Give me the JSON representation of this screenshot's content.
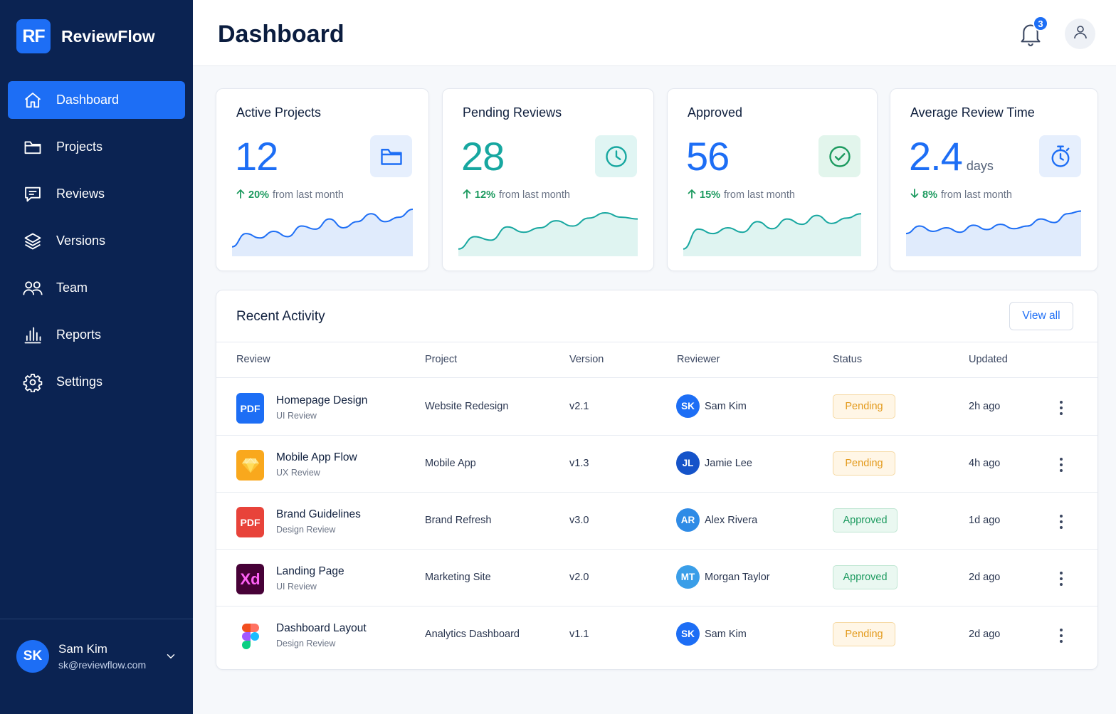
{
  "brand": {
    "logo": "RF",
    "name": "ReviewFlow"
  },
  "nav": [
    {
      "label": "Dashboard",
      "icon": "home-icon",
      "active": true
    },
    {
      "label": "Projects",
      "icon": "folder-icon"
    },
    {
      "label": "Reviews",
      "icon": "message-icon"
    },
    {
      "label": "Versions",
      "icon": "layers-icon"
    },
    {
      "label": "Team",
      "icon": "users-icon"
    },
    {
      "label": "Reports",
      "icon": "bar-chart-icon"
    },
    {
      "label": "Settings",
      "icon": "gear-icon"
    }
  ],
  "user": {
    "initials": "SK",
    "name": "Sam Kim",
    "email": "sk@reviewflow.com"
  },
  "header": {
    "title": "Dashboard",
    "notification_count": "3"
  },
  "colors": {
    "sidebar": "#0b2352",
    "accent": "#1d6ef5",
    "teal": "#17a7a0",
    "green": "#1c9a5f",
    "pending": "#e39a1c"
  },
  "stats": [
    {
      "title": "Active Projects",
      "value": "12",
      "unit": "",
      "change_pct": "20%",
      "change_text": "from last month",
      "direction": "up",
      "icon": "folder-icon",
      "trend": [
        0.15,
        0.45,
        0.35,
        0.5,
        0.38,
        0.62,
        0.55,
        0.78,
        0.58,
        0.72,
        0.9,
        0.72,
        0.82,
        1.0
      ]
    },
    {
      "title": "Pending Reviews",
      "value": "28",
      "unit": "",
      "change_pct": "12%",
      "change_text": "from last month",
      "direction": "up",
      "icon": "clock-icon",
      "trend": [
        0.1,
        0.38,
        0.3,
        0.6,
        0.48,
        0.58,
        0.74,
        0.62,
        0.8,
        0.92,
        0.82,
        0.78
      ]
    },
    {
      "title": "Approved",
      "value": "56",
      "unit": "",
      "change_pct": "15%",
      "change_text": "from last month",
      "direction": "up",
      "icon": "check-circle-icon",
      "trend": [
        0.1,
        0.55,
        0.45,
        0.58,
        0.48,
        0.72,
        0.56,
        0.78,
        0.66,
        0.86,
        0.68,
        0.8,
        0.9
      ]
    },
    {
      "title": "Average Review Time",
      "value": "2.4",
      "unit": "days",
      "change_pct": "8%",
      "change_text": "from last month",
      "direction": "down",
      "icon": "stopwatch-icon",
      "trend": [
        0.45,
        0.62,
        0.5,
        0.58,
        0.48,
        0.64,
        0.54,
        0.66,
        0.56,
        0.62,
        0.78,
        0.7,
        0.9,
        0.96
      ]
    }
  ],
  "activity": {
    "title": "Recent Activity",
    "view_all": "View all",
    "columns": [
      "Review",
      "Project",
      "Version",
      "Reviewer",
      "Status",
      "Updated"
    ],
    "rows": [
      {
        "name": "Homepage Design",
        "type": "UI Review",
        "file_icon": "PDF",
        "file_kind": "pdf-blue",
        "project": "Website Redesign",
        "version": "v2.1",
        "reviewer_initials": "SK",
        "reviewer": "Sam Kim",
        "reviewer_color": "#1d6ef5",
        "status": "Pending",
        "updated": "2h ago"
      },
      {
        "name": "Mobile App Flow",
        "type": "UX Review",
        "file_icon": "",
        "file_kind": "sketch",
        "project": "Mobile App",
        "version": "v1.3",
        "reviewer_initials": "JL",
        "reviewer": "Jamie Lee",
        "reviewer_color": "#1553c9",
        "status": "Pending",
        "updated": "4h ago"
      },
      {
        "name": "Brand Guidelines",
        "type": "Design Review",
        "file_icon": "PDF",
        "file_kind": "pdf-red",
        "project": "Brand Refresh",
        "version": "v3.0",
        "reviewer_initials": "AR",
        "reviewer": "Alex Rivera",
        "reviewer_color": "#2f8be6",
        "status": "Approved",
        "updated": "1d ago"
      },
      {
        "name": "Landing Page",
        "type": "UI Review",
        "file_icon": "Xd",
        "file_kind": "xd",
        "project": "Marketing Site",
        "version": "v2.0",
        "reviewer_initials": "MT",
        "reviewer": "Morgan Taylor",
        "reviewer_color": "#3a9ee8",
        "status": "Approved",
        "updated": "2d ago"
      },
      {
        "name": "Dashboard Layout",
        "type": "Design Review",
        "file_icon": "",
        "file_kind": "figma",
        "project": "Analytics Dashboard",
        "version": "v1.1",
        "reviewer_initials": "SK",
        "reviewer": "Sam Kim",
        "reviewer_color": "#1d6ef5",
        "status": "Pending",
        "updated": "2d ago"
      }
    ]
  }
}
